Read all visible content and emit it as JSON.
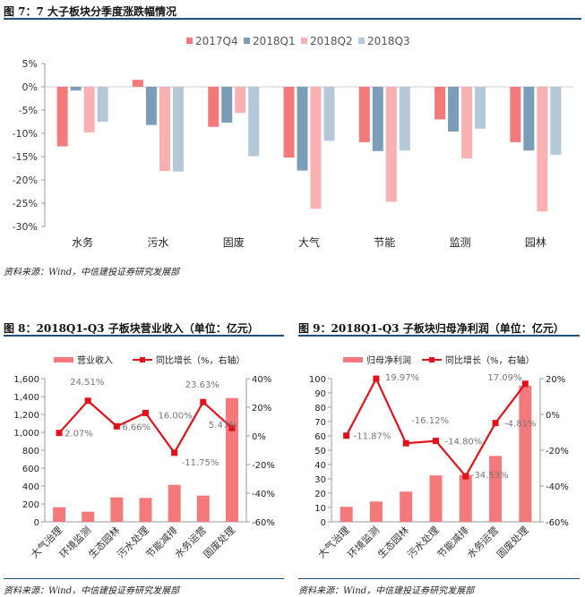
{
  "figures": {
    "fig7": {
      "title": "图 7：7 大子板块分季度涨跌幅情况",
      "source": "资料来源：Wind，中信建投证券研究发展部"
    },
    "fig8": {
      "title": "图 8：2018Q1-Q3 子板块营业收入（单位：亿元）",
      "source": "资料来源：Wind，中信建投证券研究发展部"
    },
    "fig9": {
      "title": "图 9：2018Q1-Q3 子板块归母净利润（单位：亿元）",
      "source": "资料来源：Wind，中信建投证券研究发展部"
    }
  },
  "chart_data": [
    {
      "type": "bar",
      "categories": [
        "水务",
        "污水",
        "固废",
        "大气",
        "节能",
        "监测",
        "园林"
      ],
      "series": [
        {
          "name": "2017Q4",
          "color": "#f4797b",
          "values": [
            -12.8,
            1.5,
            -8.6,
            -15.2,
            -11.9,
            -7.0,
            -11.9
          ]
        },
        {
          "name": "2018Q1",
          "color": "#7b9db8",
          "values": [
            -0.8,
            -8.2,
            -7.7,
            -18.0,
            -13.8,
            -9.6,
            -13.7
          ]
        },
        {
          "name": "2018Q2",
          "color": "#f8b0b1",
          "values": [
            -9.8,
            -18.1,
            -5.6,
            -26.2,
            -24.7,
            -15.4,
            -26.8
          ]
        },
        {
          "name": "2018Q3",
          "color": "#b4c8d9",
          "values": [
            -7.5,
            -18.2,
            -14.9,
            -11.6,
            -13.7,
            -9.0,
            -14.6
          ]
        }
      ],
      "ylim": [
        -30,
        5
      ],
      "yticks": [
        "5%",
        "0%",
        "-5%",
        "-10%",
        "-15%",
        "-20%",
        "-25%",
        "-30%"
      ],
      "legend": "top",
      "grid": false
    },
    {
      "type": "bar+line",
      "categories": [
        "大气治理",
        "环境监测",
        "生态园林",
        "污水处理",
        "节能减排",
        "水务运营",
        "固废处理"
      ],
      "bar_series": {
        "name": "营业收入",
        "color": "#f4797b",
        "values": [
          163,
          113,
          273,
          267,
          413,
          293,
          1383
        ]
      },
      "line_series": {
        "name": "同比增长（%，右轴）",
        "color": "#e3121a",
        "values": [
          2.07,
          24.51,
          6.66,
          16.0,
          -11.75,
          23.63,
          5.47
        ],
        "labels": [
          "2.07%",
          "24.51%",
          "6.66%",
          "16.00%",
          "-11.75%",
          "23.63%",
          "5.47%"
        ]
      },
      "ylim": [
        0,
        1600
      ],
      "yticks": [
        "1,600",
        "1,400",
        "1,200",
        "1,000",
        "800",
        "600",
        "400",
        "200",
        "0"
      ],
      "y2lim": [
        -60,
        40
      ],
      "y2ticks": [
        "40%",
        "20%",
        "0%",
        "-20%",
        "-40%",
        "-60%"
      ],
      "legend": "top",
      "grid": false
    },
    {
      "type": "bar+line",
      "categories": [
        "大气治理",
        "环境监测",
        "生态园林",
        "污水处理",
        "节能减排",
        "水务运营",
        "固废处理"
      ],
      "bar_series": {
        "name": "归母净利润",
        "color": "#f4797b",
        "values": [
          10.5,
          14.2,
          21.1,
          32.4,
          32.6,
          46.0,
          95.0
        ]
      },
      "line_series": {
        "name": "同比增长（%，右轴）",
        "color": "#e3121a",
        "values": [
          -11.87,
          19.97,
          -16.12,
          -14.8,
          -34.53,
          -4.81,
          17.09
        ],
        "labels": [
          "-11.87%",
          "19.97%",
          "-16.12%",
          "-14.80%",
          "-34.53%",
          "-4.81%",
          "17.09%"
        ]
      },
      "ylim": [
        0,
        100
      ],
      "yticks": [
        "100",
        "90",
        "80",
        "70",
        "60",
        "50",
        "40",
        "30",
        "20",
        "10",
        "0"
      ],
      "y2lim": [
        -60,
        20
      ],
      "y2ticks": [
        "20%",
        "0%",
        "-20%",
        "-40%",
        "-60%"
      ],
      "legend": "top",
      "grid": false
    }
  ]
}
